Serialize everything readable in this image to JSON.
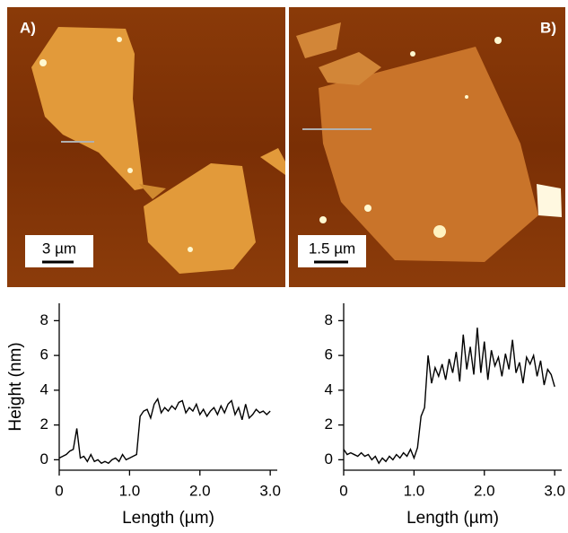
{
  "images": [
    {
      "label": "A)",
      "scale_bar": "3 µm"
    },
    {
      "label": "B)",
      "scale_bar": "1.5 µm"
    }
  ],
  "chart_data": [
    {
      "type": "line",
      "xlabel": "Length (µm)",
      "ylabel": "Height (nm)",
      "x": [
        0,
        0.05,
        0.1,
        0.15,
        0.2,
        0.25,
        0.3,
        0.35,
        0.4,
        0.45,
        0.5,
        0.55,
        0.6,
        0.65,
        0.7,
        0.75,
        0.8,
        0.85,
        0.9,
        0.95,
        1.0,
        1.05,
        1.1,
        1.15,
        1.2,
        1.25,
        1.3,
        1.35,
        1.4,
        1.45,
        1.5,
        1.55,
        1.6,
        1.65,
        1.7,
        1.75,
        1.8,
        1.85,
        1.9,
        1.95,
        2.0,
        2.05,
        2.1,
        2.15,
        2.2,
        2.25,
        2.3,
        2.35,
        2.4,
        2.45,
        2.5,
        2.55,
        2.6,
        2.65,
        2.7,
        2.75,
        2.8,
        2.85,
        2.9,
        2.95,
        3.0
      ],
      "values": [
        0.1,
        0.2,
        0.3,
        0.5,
        0.6,
        1.8,
        0.1,
        0.2,
        -0.1,
        0.3,
        -0.1,
        0,
        -0.2,
        -0.1,
        -0.2,
        0,
        0.1,
        -0.1,
        0.3,
        0,
        0.1,
        0.2,
        0.3,
        2.5,
        2.8,
        2.9,
        2.4,
        3.2,
        3.5,
        2.7,
        3.0,
        2.8,
        3.1,
        2.9,
        3.3,
        3.4,
        2.7,
        3.0,
        2.8,
        3.2,
        2.6,
        2.9,
        2.5,
        2.8,
        3.0,
        2.6,
        3.1,
        2.7,
        3.2,
        3.4,
        2.6,
        3.0,
        2.3,
        3.2,
        2.4,
        2.6,
        2.9,
        2.7,
        2.8,
        2.6,
        2.8
      ],
      "color": "#000000",
      "xlim": [
        0,
        3.1
      ],
      "ylim": [
        -0.6,
        9
      ],
      "xticks": [
        0,
        {
          "value": 1,
          "label": "1.0"
        },
        {
          "value": 2,
          "label": "2.0"
        },
        {
          "value": 3,
          "label": "3.0"
        }
      ],
      "yticks": [
        0,
        2,
        4,
        6,
        8
      ]
    },
    {
      "type": "line",
      "xlabel": "Length (µm)",
      "x": [
        0,
        0.05,
        0.1,
        0.15,
        0.2,
        0.25,
        0.3,
        0.35,
        0.4,
        0.45,
        0.5,
        0.55,
        0.6,
        0.65,
        0.7,
        0.75,
        0.8,
        0.85,
        0.9,
        0.95,
        1.0,
        1.05,
        1.1,
        1.15,
        1.2,
        1.25,
        1.3,
        1.35,
        1.4,
        1.45,
        1.5,
        1.55,
        1.6,
        1.65,
        1.7,
        1.75,
        1.8,
        1.85,
        1.9,
        1.95,
        2.0,
        2.05,
        2.1,
        2.15,
        2.2,
        2.25,
        2.3,
        2.35,
        2.4,
        2.45,
        2.5,
        2.55,
        2.6,
        2.65,
        2.7,
        2.75,
        2.8,
        2.85,
        2.9,
        2.95,
        3.0
      ],
      "values": [
        0.6,
        0.3,
        0.4,
        0.3,
        0.2,
        0.4,
        0.2,
        0.3,
        0,
        0.2,
        -0.2,
        0.1,
        -0.1,
        0.2,
        0,
        0.3,
        0.1,
        0.4,
        0.2,
        0.6,
        0.1,
        0.7,
        2.5,
        3.0,
        6.0,
        4.4,
        5.3,
        4.8,
        5.5,
        4.6,
        5.8,
        5.0,
        6.2,
        4.5,
        7.2,
        5.2,
        6.5,
        4.9,
        7.6,
        5.0,
        6.8,
        4.6,
        6.3,
        5.4,
        5.9,
        4.8,
        6.1,
        5.2,
        6.9,
        5.0,
        5.6,
        4.4,
        5.9,
        5.5,
        6.0,
        4.8,
        5.7,
        4.3,
        5.2,
        4.9,
        4.2
      ],
      "color": "#000000",
      "xlim": [
        0,
        3.1
      ],
      "ylim": [
        -0.6,
        9
      ],
      "xticks": [
        0,
        {
          "value": 1,
          "label": "1.0"
        },
        {
          "value": 2,
          "label": "2.0"
        },
        {
          "value": 3,
          "label": "3.0"
        }
      ],
      "yticks": [
        0,
        2,
        4,
        6,
        8
      ]
    }
  ]
}
